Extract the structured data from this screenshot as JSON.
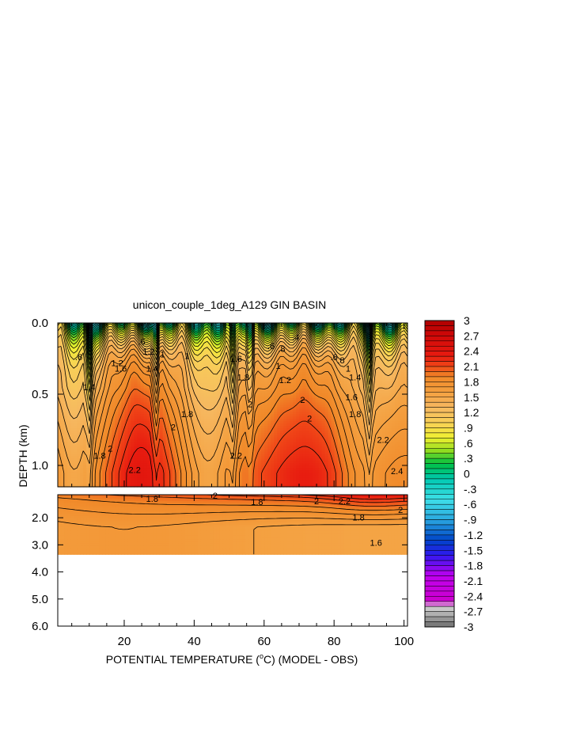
{
  "chart_data": {
    "type": "heatmap",
    "title": "unicon_couple_1deg_A129 GIN BASIN",
    "xlabel_main": "POTENTIAL TEMPERATURE (",
    "xlabel_unit": "C) (MODEL - OBS)",
    "xlabel_degree": "o",
    "ylabel": "DEPTH (km)",
    "xlim": [
      1,
      101
    ],
    "xticks": [
      20,
      40,
      60,
      80,
      100
    ],
    "upper_panel": {
      "ylim": [
        0.0,
        1.15
      ],
      "yticks": [
        0.0,
        0.5,
        1.0
      ],
      "yticklabels": [
        "0.0",
        "0.5",
        "1.0"
      ]
    },
    "lower_panel": {
      "ylim": [
        1.15,
        6.0
      ],
      "yticks": [
        2.0,
        3.0,
        4.0,
        5.0,
        6.0
      ],
      "yticklabels": [
        "2.0",
        "3.0",
        "4.0",
        "5.0",
        "6.0"
      ],
      "data_bottom_depth": 3.35
    },
    "colorbar": {
      "range": [
        -3,
        3
      ],
      "ticks": [
        3,
        2.7,
        2.4,
        2.1,
        1.8,
        1.5,
        1.2,
        0.9,
        0.6,
        0.3,
        0,
        -0.3,
        -0.6,
        -0.9,
        -1.2,
        -1.5,
        -1.8,
        -2.1,
        -2.4,
        -2.7,
        -3
      ],
      "ticklabels": [
        "3",
        "2.7",
        "2.4",
        "2.1",
        "1.8",
        "1.5",
        "1.2",
        ".9",
        ".6",
        ".3",
        "0",
        "-.3",
        "-.6",
        "-.9",
        "-1.2",
        "-1.5",
        "-1.8",
        "-2.1",
        "-2.4",
        "-2.7",
        "-3"
      ],
      "colors": [
        [
          -3.0,
          "#6e6e6e"
        ],
        [
          -2.7,
          "#bdbdbd"
        ],
        [
          -2.6,
          "#d4d4d4"
        ],
        [
          -2.5,
          "#cc00cc"
        ],
        [
          -2.0,
          "#c000f0"
        ],
        [
          -1.6,
          "#3018f0"
        ],
        [
          -1.3,
          "#0044c8"
        ],
        [
          -0.9,
          "#2aa8e0"
        ],
        [
          -0.5,
          "#3ee0e8"
        ],
        [
          -0.1,
          "#00c8b0"
        ],
        [
          0.2,
          "#00c040"
        ],
        [
          0.45,
          "#90dc20"
        ],
        [
          0.7,
          "#f0f030"
        ],
        [
          1.0,
          "#f8d058"
        ],
        [
          1.3,
          "#f6b860"
        ],
        [
          1.6,
          "#f4a040"
        ],
        [
          1.9,
          "#f08828"
        ],
        [
          2.1,
          "#f04818"
        ],
        [
          2.3,
          "#e81c10"
        ],
        [
          2.7,
          "#d00808"
        ],
        [
          3.0,
          "#b00000"
        ]
      ]
    },
    "contour_labels_upper": [
      {
        "x": 7,
        "d": 0.24,
        "t": ".6"
      },
      {
        "x": 10,
        "d": 0.45,
        "t": "1.4"
      },
      {
        "x": 18,
        "d": 0.28,
        "t": "1.2"
      },
      {
        "x": 19,
        "d": 0.32,
        "t": "1.6"
      },
      {
        "x": 25,
        "d": 0.13,
        "t": ".6"
      },
      {
        "x": 27,
        "d": 0.2,
        "t": "1.2"
      },
      {
        "x": 28,
        "d": 0.32,
        "t": "1.4"
      },
      {
        "x": 31,
        "d": 0.22,
        "t": "1"
      },
      {
        "x": 38,
        "d": 0.23,
        "t": "1"
      },
      {
        "x": 38,
        "d": 0.64,
        "t": "1.8"
      },
      {
        "x": 34,
        "d": 0.73,
        "t": "2"
      },
      {
        "x": 52,
        "d": 0.25,
        "t": "1.6"
      },
      {
        "x": 54,
        "d": 0.38,
        "t": "1.8"
      },
      {
        "x": 56,
        "d": 0.57,
        "t": "2"
      },
      {
        "x": 62,
        "d": 0.16,
        "t": ".6"
      },
      {
        "x": 65,
        "d": 0.18,
        "t": ".8"
      },
      {
        "x": 64,
        "d": 0.3,
        "t": "1"
      },
      {
        "x": 66,
        "d": 0.4,
        "t": "1.2"
      },
      {
        "x": 69,
        "d": 0.1,
        "t": ".4"
      },
      {
        "x": 71,
        "d": 0.54,
        "t": "2"
      },
      {
        "x": 73,
        "d": 0.67,
        "t": "2"
      },
      {
        "x": 80,
        "d": 0.24,
        "t": ".6"
      },
      {
        "x": 82,
        "d": 0.26,
        "t": ".8"
      },
      {
        "x": 84,
        "d": 0.32,
        "t": "1"
      },
      {
        "x": 86,
        "d": 0.38,
        "t": "1.4"
      },
      {
        "x": 85,
        "d": 0.52,
        "t": "1.6"
      },
      {
        "x": 86,
        "d": 0.64,
        "t": "1.8"
      },
      {
        "x": 94,
        "d": 0.82,
        "t": "2.2"
      },
      {
        "x": 98,
        "d": 1.04,
        "t": "2.4"
      },
      {
        "x": 13,
        "d": 0.93,
        "t": "1.8"
      },
      {
        "x": 16,
        "d": 0.88,
        "t": "2"
      },
      {
        "x": 23,
        "d": 1.03,
        "t": "2.2"
      },
      {
        "x": 52,
        "d": 0.93,
        "t": "2.2"
      }
    ],
    "contour_labels_lower": [
      {
        "x": 28,
        "d": 1.3,
        "t": "1.8"
      },
      {
        "x": 46,
        "d": 1.18,
        "t": "2"
      },
      {
        "x": 58,
        "d": 1.42,
        "t": "1.8"
      },
      {
        "x": 75,
        "d": 1.38,
        "t": "2"
      },
      {
        "x": 83,
        "d": 1.38,
        "t": "2.2"
      },
      {
        "x": 99,
        "d": 1.7,
        "t": "2"
      },
      {
        "x": 87,
        "d": 1.98,
        "t": "1.8"
      },
      {
        "x": 92,
        "d": 2.92,
        "t": "1.6"
      }
    ]
  }
}
